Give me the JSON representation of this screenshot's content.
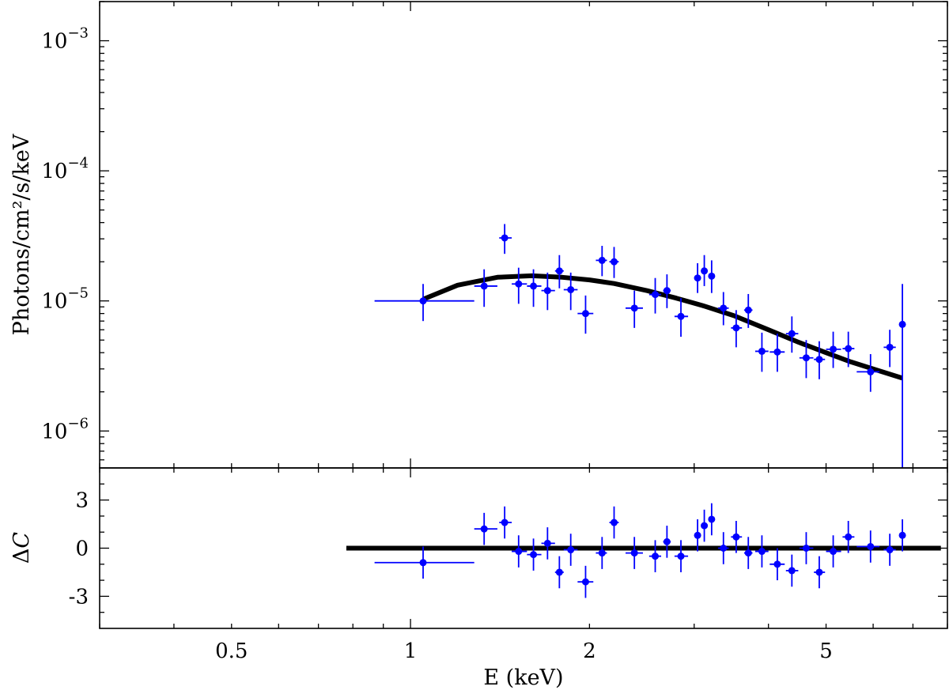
{
  "chart_data": [
    {
      "type": "scatter",
      "panel": "spectrum",
      "xscale": "log",
      "yscale": "log",
      "xlim": [
        0.3,
        8.0
      ],
      "ylim": [
        5.2e-07,
        0.002
      ],
      "ylabel": "Photons/cm²/s/keV",
      "xlabel": "",
      "grid": false,
      "color_data": "#0000ff",
      "color_model": "#000000",
      "yticks": [
        {
          "value": 0.001,
          "base": "10",
          "exp": "−3"
        },
        {
          "value": 0.0001,
          "base": "10",
          "exp": "−4"
        },
        {
          "value": 1e-05,
          "base": "10",
          "exp": "−5"
        },
        {
          "value": 1e-06,
          "base": "10",
          "exp": "−6"
        }
      ],
      "series": [
        {
          "kind": "errorbar",
          "points": [
            {
              "x": 1.05,
              "xlo": 0.87,
              "xhi": 1.28,
              "y": 1e-05,
              "ylo": 7e-06,
              "yhi": 1.35e-05
            },
            {
              "x": 1.33,
              "xlo": 1.28,
              "xhi": 1.4,
              "y": 1.3e-05,
              "ylo": 9e-06,
              "yhi": 1.75e-05
            },
            {
              "x": 1.44,
              "xlo": 1.41,
              "xhi": 1.48,
              "y": 3.05e-05,
              "ylo": 2.3e-05,
              "yhi": 3.9e-05
            },
            {
              "x": 1.52,
              "xlo": 1.48,
              "xhi": 1.57,
              "y": 1.35e-05,
              "ylo": 9.5e-06,
              "yhi": 1.8e-05
            },
            {
              "x": 1.61,
              "xlo": 1.57,
              "xhi": 1.66,
              "y": 1.3e-05,
              "ylo": 9e-06,
              "yhi": 1.75e-05
            },
            {
              "x": 1.7,
              "xlo": 1.66,
              "xhi": 1.75,
              "y": 1.2e-05,
              "ylo": 8.5e-06,
              "yhi": 1.65e-05
            },
            {
              "x": 1.78,
              "xlo": 1.75,
              "xhi": 1.81,
              "y": 1.7e-05,
              "ylo": 1.25e-05,
              "yhi": 2.25e-05
            },
            {
              "x": 1.86,
              "xlo": 1.81,
              "xhi": 1.91,
              "y": 1.22e-05,
              "ylo": 8.5e-06,
              "yhi": 1.65e-05
            },
            {
              "x": 1.97,
              "xlo": 1.91,
              "xhi": 2.03,
              "y": 8e-06,
              "ylo": 5.6e-06,
              "yhi": 1.1e-05
            },
            {
              "x": 2.1,
              "xlo": 2.05,
              "xhi": 2.14,
              "y": 2.05e-05,
              "ylo": 1.55e-05,
              "yhi": 2.65e-05
            },
            {
              "x": 2.2,
              "xlo": 2.16,
              "xhi": 2.24,
              "y": 2e-05,
              "ylo": 1.5e-05,
              "yhi": 2.6e-05
            },
            {
              "x": 2.38,
              "xlo": 2.3,
              "xhi": 2.46,
              "y": 8.8e-06,
              "ylo": 6.2e-06,
              "yhi": 1.2e-05
            },
            {
              "x": 2.58,
              "xlo": 2.52,
              "xhi": 2.64,
              "y": 1.12e-05,
              "ylo": 8e-06,
              "yhi": 1.5e-05
            },
            {
              "x": 2.7,
              "xlo": 2.66,
              "xhi": 2.74,
              "y": 1.2e-05,
              "ylo": 8.8e-06,
              "yhi": 1.6e-05
            },
            {
              "x": 2.85,
              "xlo": 2.78,
              "xhi": 2.93,
              "y": 7.6e-06,
              "ylo": 5.3e-06,
              "yhi": 1.05e-05
            },
            {
              "x": 3.04,
              "xlo": 3.0,
              "xhi": 3.08,
              "y": 1.5e-05,
              "ylo": 1.15e-05,
              "yhi": 1.95e-05
            },
            {
              "x": 3.12,
              "xlo": 3.09,
              "xhi": 3.15,
              "y": 1.7e-05,
              "ylo": 1.3e-05,
              "yhi": 2.25e-05
            },
            {
              "x": 3.21,
              "xlo": 3.17,
              "xhi": 3.25,
              "y": 1.55e-05,
              "ylo": 1.15e-05,
              "yhi": 2.05e-05
            },
            {
              "x": 3.36,
              "xlo": 3.29,
              "xhi": 3.43,
              "y": 8.8e-06,
              "ylo": 6.5e-06,
              "yhi": 1.17e-05
            },
            {
              "x": 3.53,
              "xlo": 3.46,
              "xhi": 3.61,
              "y": 6.2e-06,
              "ylo": 4.4e-06,
              "yhi": 8.5e-06
            },
            {
              "x": 3.7,
              "xlo": 3.64,
              "xhi": 3.76,
              "y": 8.5e-06,
              "ylo": 6.2e-06,
              "yhi": 1.13e-05
            },
            {
              "x": 3.9,
              "xlo": 3.8,
              "xhi": 4.0,
              "y": 4.1e-06,
              "ylo": 2.85e-06,
              "yhi": 5.7e-06
            },
            {
              "x": 4.14,
              "xlo": 4.02,
              "xhi": 4.26,
              "y": 4.05e-06,
              "ylo": 2.85e-06,
              "yhi": 5.6e-06
            },
            {
              "x": 4.38,
              "xlo": 4.28,
              "xhi": 4.49,
              "y": 5.6e-06,
              "ylo": 4e-06,
              "yhi": 7.6e-06
            },
            {
              "x": 4.63,
              "xlo": 4.51,
              "xhi": 4.76,
              "y": 3.65e-06,
              "ylo": 2.55e-06,
              "yhi": 5e-06
            },
            {
              "x": 4.87,
              "xlo": 4.77,
              "xhi": 4.98,
              "y": 3.55e-06,
              "ylo": 2.5e-06,
              "yhi": 4.9e-06
            },
            {
              "x": 5.14,
              "xlo": 5.0,
              "xhi": 5.3,
              "y": 4.25e-06,
              "ylo": 3.05e-06,
              "yhi": 5.8e-06
            },
            {
              "x": 5.45,
              "xlo": 5.33,
              "xhi": 5.58,
              "y": 4.3e-06,
              "ylo": 3.1e-06,
              "yhi": 5.8e-06
            },
            {
              "x": 5.94,
              "xlo": 5.63,
              "xhi": 6.15,
              "y": 2.85e-06,
              "ylo": 2e-06,
              "yhi": 3.9e-06
            },
            {
              "x": 6.4,
              "xlo": 6.25,
              "xhi": 6.55,
              "y": 4.4e-06,
              "ylo": 3.1e-06,
              "yhi": 6e-06
            },
            {
              "x": 6.72,
              "xlo": 6.68,
              "xhi": 6.76,
              "y": 6.6e-06,
              "ylo": 5.2e-07,
              "yhi": 1.35e-05
            }
          ]
        },
        {
          "kind": "model-line",
          "x": [
            1.05,
            1.2,
            1.4,
            1.6,
            1.8,
            2.0,
            2.2,
            2.5,
            2.8,
            3.1,
            3.5,
            4.0,
            4.5,
            5.0,
            5.5,
            6.0,
            6.72
          ],
          "y": [
            1.03e-05,
            1.32e-05,
            1.52e-05,
            1.56e-05,
            1.52e-05,
            1.45e-05,
            1.36e-05,
            1.2e-05,
            1.05e-05,
            9.2e-06,
            7.7e-06,
            6e-06,
            4.8e-06,
            4e-06,
            3.4e-06,
            3e-06,
            2.55e-06
          ]
        }
      ]
    },
    {
      "type": "scatter",
      "panel": "residuals",
      "xscale": "log",
      "yscale": "linear",
      "xlim": [
        0.3,
        8.0
      ],
      "ylim": [
        -5,
        5
      ],
      "xlabel": "E (keV)",
      "ylabel_main": "Δ",
      "ylabel_italic": "C",
      "grid": false,
      "color_data": "#0000ff",
      "color_model": "#000000",
      "yticks": [
        {
          "value": 3,
          "label": "3"
        },
        {
          "value": 0,
          "label": "0"
        },
        {
          "value": -3,
          "label": "-3"
        }
      ],
      "xticks": [
        {
          "value": 0.5,
          "label": "0.5"
        },
        {
          "value": 1,
          "label": "1"
        },
        {
          "value": 2,
          "label": "2"
        },
        {
          "value": 5,
          "label": "5"
        }
      ],
      "zero_line": {
        "xmin": 0.78,
        "xmax": 7.8,
        "y": 0
      },
      "series": [
        {
          "kind": "errorbar",
          "points": [
            {
              "x": 1.05,
              "xlo": 0.87,
              "xhi": 1.28,
              "y": -0.9,
              "ylo": -1.9,
              "yhi": 0.1
            },
            {
              "x": 1.33,
              "xlo": 1.28,
              "xhi": 1.4,
              "y": 1.2,
              "ylo": 0.2,
              "yhi": 2.2
            },
            {
              "x": 1.44,
              "xlo": 1.41,
              "xhi": 1.48,
              "y": 1.6,
              "ylo": 0.6,
              "yhi": 2.6
            },
            {
              "x": 1.52,
              "xlo": 1.48,
              "xhi": 1.57,
              "y": -0.2,
              "ylo": -1.2,
              "yhi": 0.8
            },
            {
              "x": 1.61,
              "xlo": 1.57,
              "xhi": 1.66,
              "y": -0.4,
              "ylo": -1.4,
              "yhi": 0.6
            },
            {
              "x": 1.7,
              "xlo": 1.66,
              "xhi": 1.75,
              "y": 0.3,
              "ylo": -0.7,
              "yhi": 1.3
            },
            {
              "x": 1.78,
              "xlo": 1.75,
              "xhi": 1.81,
              "y": -1.5,
              "ylo": -2.5,
              "yhi": -0.5
            },
            {
              "x": 1.86,
              "xlo": 1.81,
              "xhi": 1.91,
              "y": -0.1,
              "ylo": -1.1,
              "yhi": 0.9
            },
            {
              "x": 1.97,
              "xlo": 1.91,
              "xhi": 2.03,
              "y": -2.1,
              "ylo": -3.1,
              "yhi": -1.1
            },
            {
              "x": 2.1,
              "xlo": 2.05,
              "xhi": 2.14,
              "y": -0.3,
              "ylo": -1.3,
              "yhi": 0.7
            },
            {
              "x": 2.2,
              "xlo": 2.16,
              "xhi": 2.24,
              "y": 1.6,
              "ylo": 0.6,
              "yhi": 2.6
            },
            {
              "x": 2.38,
              "xlo": 2.3,
              "xhi": 2.46,
              "y": -0.3,
              "ylo": -1.3,
              "yhi": 0.7
            },
            {
              "x": 2.58,
              "xlo": 2.52,
              "xhi": 2.64,
              "y": -0.5,
              "ylo": -1.5,
              "yhi": 0.5
            },
            {
              "x": 2.7,
              "xlo": 2.66,
              "xhi": 2.74,
              "y": 0.4,
              "ylo": -0.6,
              "yhi": 1.4
            },
            {
              "x": 2.85,
              "xlo": 2.78,
              "xhi": 2.93,
              "y": -0.5,
              "ylo": -1.5,
              "yhi": 0.5
            },
            {
              "x": 3.04,
              "xlo": 3.0,
              "xhi": 3.08,
              "y": 0.8,
              "ylo": -0.2,
              "yhi": 1.8
            },
            {
              "x": 3.12,
              "xlo": 3.09,
              "xhi": 3.15,
              "y": 1.4,
              "ylo": 0.4,
              "yhi": 2.4
            },
            {
              "x": 3.21,
              "xlo": 3.17,
              "xhi": 3.25,
              "y": 1.8,
              "ylo": 0.8,
              "yhi": 2.8
            },
            {
              "x": 3.36,
              "xlo": 3.29,
              "xhi": 3.43,
              "y": 0.0,
              "ylo": -1.0,
              "yhi": 1.0
            },
            {
              "x": 3.53,
              "xlo": 3.46,
              "xhi": 3.61,
              "y": 0.7,
              "ylo": -0.3,
              "yhi": 1.7
            },
            {
              "x": 3.7,
              "xlo": 3.64,
              "xhi": 3.76,
              "y": -0.3,
              "ylo": -1.3,
              "yhi": 0.7
            },
            {
              "x": 3.9,
              "xlo": 3.8,
              "xhi": 4.0,
              "y": -0.2,
              "ylo": -1.2,
              "yhi": 0.8
            },
            {
              "x": 4.14,
              "xlo": 4.02,
              "xhi": 4.26,
              "y": -1.0,
              "ylo": -2.0,
              "yhi": 0.0
            },
            {
              "x": 4.38,
              "xlo": 4.28,
              "xhi": 4.49,
              "y": -1.4,
              "ylo": -2.4,
              "yhi": -0.4
            },
            {
              "x": 4.63,
              "xlo": 4.51,
              "xhi": 4.76,
              "y": 0.0,
              "ylo": -1.0,
              "yhi": 1.0
            },
            {
              "x": 4.87,
              "xlo": 4.77,
              "xhi": 4.98,
              "y": -1.5,
              "ylo": -2.5,
              "yhi": -0.5
            },
            {
              "x": 5.14,
              "xlo": 5.0,
              "xhi": 5.3,
              "y": -0.2,
              "ylo": -1.2,
              "yhi": 0.8
            },
            {
              "x": 5.45,
              "xlo": 5.33,
              "xhi": 5.58,
              "y": 0.7,
              "ylo": -0.3,
              "yhi": 1.7
            },
            {
              "x": 5.94,
              "xlo": 5.63,
              "xhi": 6.15,
              "y": 0.1,
              "ylo": -0.9,
              "yhi": 1.1
            },
            {
              "x": 6.4,
              "xlo": 6.25,
              "xhi": 6.55,
              "y": -0.1,
              "ylo": -1.1,
              "yhi": 0.9
            },
            {
              "x": 6.72,
              "xlo": 6.68,
              "xhi": 6.76,
              "y": 0.8,
              "ylo": -0.2,
              "yhi": 1.8
            }
          ]
        }
      ]
    }
  ]
}
